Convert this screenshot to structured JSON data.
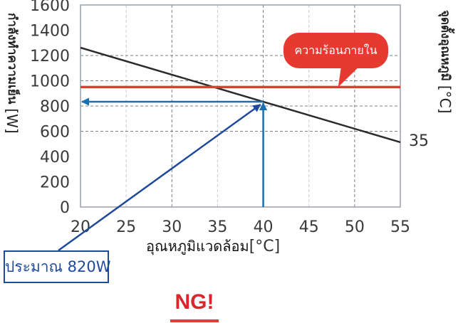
{
  "chart_data": {
    "type": "line",
    "xlabel": "อุณหภูมิแวดล้อม",
    "xunit": "[°C]",
    "ylabel": "กำลังทำความเย็น",
    "yunit": "[W]",
    "y2label": "จุดตั้งอุณหภูมิ",
    "y2unit": "[°C]",
    "xlim": [
      20,
      55
    ],
    "ylim": [
      0,
      1600
    ],
    "xticks": [
      "20",
      "25",
      "30",
      "35",
      "40",
      "45",
      "50",
      "55"
    ],
    "yticks": [
      "0",
      "200",
      "400",
      "600",
      "800",
      "1000",
      "1200",
      "1400",
      "1600"
    ],
    "grid": "dashed",
    "series": [
      {
        "name": "35",
        "color": "#2b2b2b",
        "x": [
          20,
          55
        ],
        "y": [
          1262,
          513
        ]
      }
    ],
    "reference_line": {
      "label": "ความร้อนภายใน",
      "y": 950,
      "color": "#e63a31"
    },
    "readout": {
      "x": 40,
      "y": 834,
      "color": "#1a6fb0"
    },
    "callout": {
      "text": "ประมาณ 820W",
      "color": "#1f4a9c"
    },
    "verdict": {
      "text": "NG!",
      "color": "#d9262b"
    }
  }
}
